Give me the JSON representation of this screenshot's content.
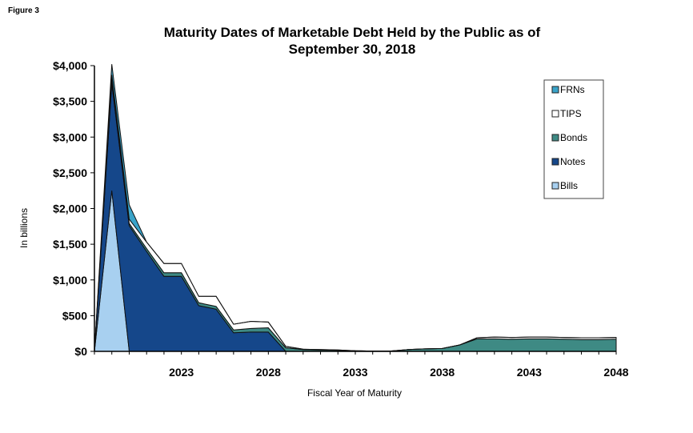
{
  "figure_label": "Figure 3",
  "chart_data": {
    "type": "area",
    "title_line1": "Maturity Dates of Marketable Debt Held by the Public as of",
    "title_line2": "September 30, 2018",
    "xlabel": "Fiscal Year of Maturity",
    "ylabel": "In billions",
    "x": [
      2018,
      2019,
      2020,
      2021,
      2022,
      2023,
      2024,
      2025,
      2026,
      2027,
      2028,
      2029,
      2030,
      2031,
      2032,
      2033,
      2034,
      2035,
      2036,
      2037,
      2038,
      2039,
      2040,
      2041,
      2042,
      2043,
      2044,
      2045,
      2046,
      2047,
      2048
    ],
    "xlim": [
      2018,
      2048
    ],
    "ylim": [
      0,
      4000
    ],
    "y_ticks": [
      0,
      500,
      1000,
      1500,
      2000,
      2500,
      3000,
      3500,
      4000
    ],
    "y_tick_labels": [
      "$0",
      "$500",
      "$1,000",
      "$1,500",
      "$2,000",
      "$2,500",
      "$3,000",
      "$3,500",
      "$4,000"
    ],
    "x_ticks": [
      2023,
      2028,
      2033,
      2038,
      2043,
      2048
    ],
    "x_tick_labels": [
      "2023",
      "2028",
      "2033",
      "2038",
      "2043",
      "2048"
    ],
    "stack_order": [
      "Bills",
      "Notes",
      "Bonds",
      "TIPS",
      "FRNs"
    ],
    "series": [
      {
        "name": "Bills",
        "color": "#a8d0f0",
        "values": [
          0,
          2250,
          0,
          0,
          0,
          0,
          0,
          0,
          0,
          0,
          0,
          0,
          0,
          0,
          0,
          0,
          0,
          0,
          0,
          0,
          0,
          0,
          0,
          0,
          0,
          0,
          0,
          0,
          0,
          0,
          0
        ]
      },
      {
        "name": "Notes",
        "color": "#15478a",
        "values": [
          0,
          1500,
          1760,
          1400,
          1050,
          1050,
          640,
          590,
          260,
          270,
          270,
          0,
          0,
          0,
          0,
          0,
          0,
          0,
          0,
          0,
          0,
          0,
          0,
          0,
          0,
          0,
          0,
          0,
          0,
          0,
          0
        ]
      },
      {
        "name": "Bonds",
        "color": "#3e8a84",
        "values": [
          0,
          60,
          30,
          40,
          50,
          50,
          40,
          40,
          40,
          50,
          60,
          50,
          25,
          20,
          15,
          8,
          5,
          5,
          25,
          35,
          40,
          90,
          175,
          175,
          170,
          175,
          175,
          170,
          165,
          165,
          170
        ]
      },
      {
        "name": "TIPS",
        "color": "#ffffff",
        "values": [
          0,
          60,
          60,
          90,
          130,
          130,
          90,
          140,
          80,
          100,
          80,
          20,
          5,
          5,
          5,
          0,
          0,
          0,
          0,
          0,
          0,
          0,
          15,
          25,
          25,
          25,
          25,
          25,
          25,
          25,
          25
        ]
      },
      {
        "name": "FRNs",
        "color": "#3aa3c8",
        "values": [
          0,
          150,
          200,
          0,
          0,
          0,
          0,
          0,
          0,
          0,
          0,
          0,
          0,
          0,
          0,
          0,
          0,
          0,
          0,
          0,
          0,
          0,
          0,
          0,
          0,
          0,
          0,
          0,
          0,
          0,
          0
        ]
      }
    ],
    "legend": [
      "FRNs",
      "TIPS",
      "Bonds",
      "Notes",
      "Bills"
    ],
    "legend_position": "top-right",
    "grid": false
  }
}
